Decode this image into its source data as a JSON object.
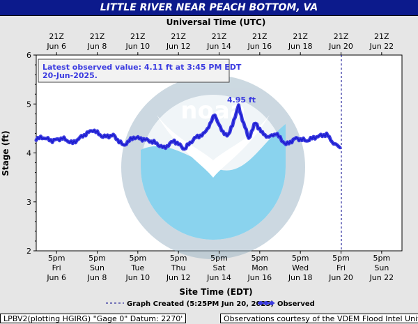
{
  "title": "LITTLE RIVER NEAR PEACH BOTTOM, VA",
  "top_axis_title": "Universal Time (UTC)",
  "bottom_axis_title": "Site Time (EDT)",
  "y_axis_title": "Stage (ft)",
  "latest_box": {
    "line1": "Latest observed value: 4.11 ft at 3:45 PM EDT",
    "line2": "20-Jun-2025."
  },
  "peak_label": "4.95 ft",
  "legend": {
    "created_label": "Graph Created (5:25PM Jun 20, 2025)",
    "observed_label": "Observed"
  },
  "footer": {
    "left": "LPBV2(plotting HGIRG) \"Gage 0\" Datum: 2270'",
    "right": "Observations courtesy of the VDEM Flood Intel Unit"
  },
  "colors": {
    "title_bar": "#0c1a8c",
    "observed": "#3b3be0",
    "created_line": "#00008b",
    "plot_bg": "#ffffff",
    "page_bg": "#e6e6e6"
  },
  "chart_data": {
    "type": "line",
    "ylabel": "Stage (ft)",
    "xlabel": "Site Time (EDT)",
    "ylim": [
      2,
      6
    ],
    "yticks": [
      2,
      3,
      4,
      5,
      6
    ],
    "x_range": [
      "2025-06-05T17:00",
      "2025-06-23T17:00"
    ],
    "grid": false,
    "top_ticks": [
      {
        "l1": "21Z",
        "l2": "Jun  6",
        "x": "2025-06-06T17:00"
      },
      {
        "l1": "21Z",
        "l2": "Jun  8",
        "x": "2025-06-08T17:00"
      },
      {
        "l1": "21Z",
        "l2": "Jun 10",
        "x": "2025-06-10T17:00"
      },
      {
        "l1": "21Z",
        "l2": "Jun 12",
        "x": "2025-06-12T17:00"
      },
      {
        "l1": "21Z",
        "l2": "Jun 14",
        "x": "2025-06-14T17:00"
      },
      {
        "l1": "21Z",
        "l2": "Jun 16",
        "x": "2025-06-16T17:00"
      },
      {
        "l1": "21Z",
        "l2": "Jun 18",
        "x": "2025-06-18T17:00"
      },
      {
        "l1": "21Z",
        "l2": "Jun 20",
        "x": "2025-06-20T17:00"
      },
      {
        "l1": "21Z",
        "l2": "Jun 22",
        "x": "2025-06-22T17:00"
      }
    ],
    "bottom_ticks": [
      {
        "l1": "5pm",
        "l2": "Fri",
        "l3": "Jun 6",
        "x": "2025-06-06T17:00"
      },
      {
        "l1": "5pm",
        "l2": "Sun",
        "l3": "Jun 8",
        "x": "2025-06-08T17:00"
      },
      {
        "l1": "5pm",
        "l2": "Tue",
        "l3": "Jun 10",
        "x": "2025-06-10T17:00"
      },
      {
        "l1": "5pm",
        "l2": "Thu",
        "l3": "Jun 12",
        "x": "2025-06-12T17:00"
      },
      {
        "l1": "5pm",
        "l2": "Sat",
        "l3": "Jun 14",
        "x": "2025-06-14T17:00"
      },
      {
        "l1": "5pm",
        "l2": "Mon",
        "l3": "Jun 16",
        "x": "2025-06-16T17:00"
      },
      {
        "l1": "5pm",
        "l2": "Wed",
        "l3": "Jun 18",
        "x": "2025-06-18T17:00"
      },
      {
        "l1": "5pm",
        "l2": "Fri",
        "l3": "Jun 20",
        "x": "2025-06-20T17:00"
      },
      {
        "l1": "5pm",
        "l2": "Sun",
        "l3": "Jun 22",
        "x": "2025-06-22T17:00"
      }
    ],
    "graph_created": "2025-06-20T17:25",
    "peak": {
      "x": "2025-06-15T16:00",
      "y": 4.95
    },
    "series": [
      {
        "name": "Observed",
        "points": [
          [
            "2025-06-05T17:00",
            4.28
          ],
          [
            "2025-06-06T00:00",
            4.32
          ],
          [
            "2025-06-06T12:00",
            4.25
          ],
          [
            "2025-06-07T00:00",
            4.3
          ],
          [
            "2025-06-07T12:00",
            4.2
          ],
          [
            "2025-06-08T00:00",
            4.35
          ],
          [
            "2025-06-08T12:00",
            4.47
          ],
          [
            "2025-06-09T00:00",
            4.33
          ],
          [
            "2025-06-09T12:00",
            4.36
          ],
          [
            "2025-06-10T00:00",
            4.15
          ],
          [
            "2025-06-10T12:00",
            4.32
          ],
          [
            "2025-06-11T00:00",
            4.28
          ],
          [
            "2025-06-11T12:00",
            4.22
          ],
          [
            "2025-06-12T00:00",
            4.1
          ],
          [
            "2025-06-12T12:00",
            4.25
          ],
          [
            "2025-06-13T00:00",
            4.08
          ],
          [
            "2025-06-13T12:00",
            4.3
          ],
          [
            "2025-06-14T00:00",
            4.4
          ],
          [
            "2025-06-14T08:00",
            4.65
          ],
          [
            "2025-06-14T12:00",
            4.78
          ],
          [
            "2025-06-14T20:00",
            4.45
          ],
          [
            "2025-06-15T04:00",
            4.35
          ],
          [
            "2025-06-15T12:00",
            4.75
          ],
          [
            "2025-06-15T16:00",
            4.95
          ],
          [
            "2025-06-15T22:00",
            4.6
          ],
          [
            "2025-06-16T04:00",
            4.3
          ],
          [
            "2025-06-16T12:00",
            4.62
          ],
          [
            "2025-06-16T20:00",
            4.4
          ],
          [
            "2025-06-17T04:00",
            4.32
          ],
          [
            "2025-06-17T12:00",
            4.4
          ],
          [
            "2025-06-18T00:00",
            4.17
          ],
          [
            "2025-06-18T12:00",
            4.3
          ],
          [
            "2025-06-19T00:00",
            4.25
          ],
          [
            "2025-06-19T12:00",
            4.33
          ],
          [
            "2025-06-20T00:00",
            4.38
          ],
          [
            "2025-06-20T08:00",
            4.2
          ],
          [
            "2025-06-20T15:45",
            4.11
          ]
        ]
      }
    ]
  }
}
